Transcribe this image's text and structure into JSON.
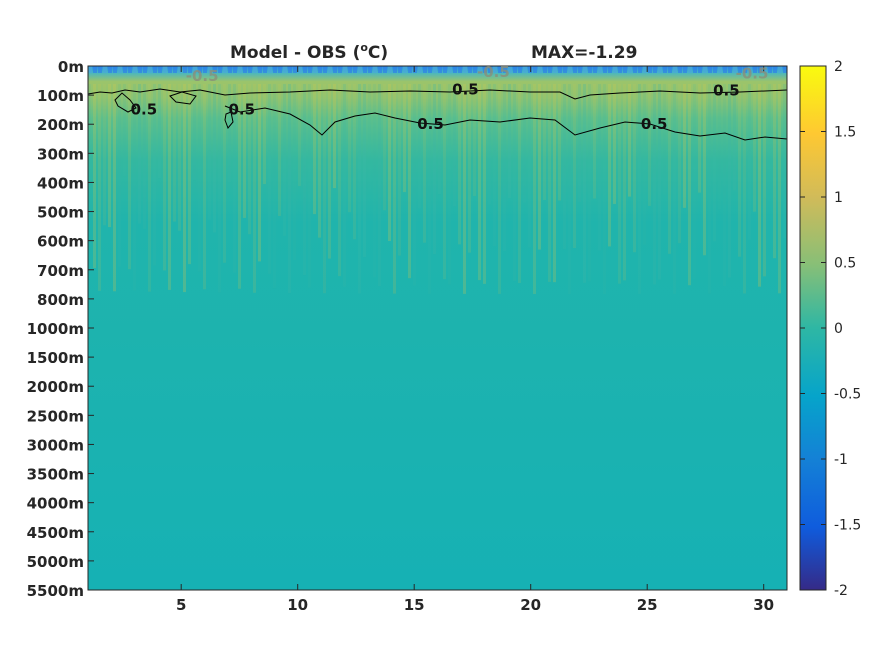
{
  "chart_data": {
    "type": "heatmap",
    "title": "Model - OBS (",
    "title_unit": "C)",
    "title_unit_sup": "o",
    "max_label": "MAX=-1.29",
    "x_ticks": [
      5,
      10,
      15,
      20,
      25,
      30
    ],
    "xlim": [
      1,
      31
    ],
    "y_ticks": [
      "0m",
      "100m",
      "200m",
      "300m",
      "400m",
      "500m",
      "600m",
      "700m",
      "800m",
      "1000m",
      "1500m",
      "2000m",
      "2500m",
      "3000m",
      "3500m",
      "4000m",
      "4500m",
      "5000m",
      "5500m"
    ],
    "colorbar": {
      "range": [
        -2,
        2
      ],
      "ticks": [
        2,
        1.5,
        1,
        0.5,
        0,
        -0.5,
        -1,
        -1.5,
        -2
      ],
      "colormap": "parula"
    },
    "contour_levels": [
      0.5,
      -0.5
    ],
    "contour_labels": [
      {
        "text": "0.5",
        "x": 3.4,
        "y_level": 1.5
      },
      {
        "text": "0.5",
        "x": 7.6,
        "y_level": 1.5
      },
      {
        "text": "0.5",
        "x": 17.2,
        "y_level": 0.8
      },
      {
        "text": "0.5",
        "x": 15.7,
        "y_level": 2.0
      },
      {
        "text": "0.5",
        "x": 25.3,
        "y_level": 2.0
      },
      {
        "text": "0.5",
        "x": 28.4,
        "y_level": 0.85
      },
      {
        "text": "-0.5",
        "x": 5.9,
        "y_level": 0.35
      },
      {
        "text": "-0.5",
        "x": 18.4,
        "y_level": 0.2
      },
      {
        "text": "-0.5",
        "x": 29.5,
        "y_level": 0.25
      }
    ]
  }
}
